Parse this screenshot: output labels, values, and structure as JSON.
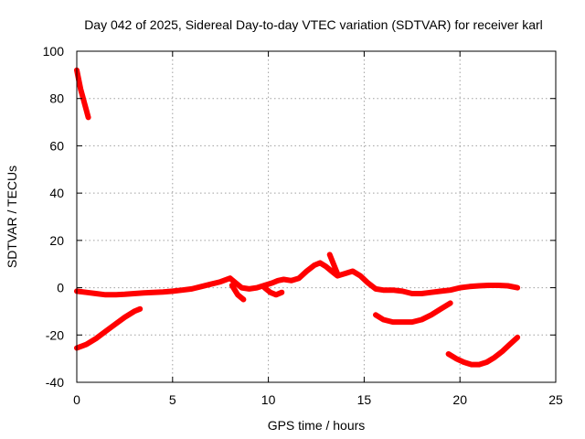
{
  "chart_data": {
    "type": "line",
    "title": "Day 042 of 2025, Sidereal Day-to-day VTEC variation (SDTVAR) for receiver karl",
    "xlabel": "GPS time / hours",
    "ylabel": "SDTVAR / TECUs",
    "xlim": [
      0,
      25
    ],
    "ylim": [
      -40,
      100
    ],
    "x_ticks": [
      0,
      5,
      10,
      15,
      20,
      25
    ],
    "y_ticks": [
      -40,
      -20,
      0,
      20,
      40,
      60,
      80,
      100
    ],
    "grid": true,
    "legend": "none",
    "series_color": "#ff0000",
    "series": [
      {
        "x": [
          0.0,
          0.1,
          0.2,
          0.3,
          0.4,
          0.5,
          0.6
        ],
        "y": [
          92,
          88,
          84,
          81,
          78,
          75,
          72
        ]
      },
      {
        "x": [
          0.0,
          0.5,
          1.0,
          1.5,
          2.0,
          2.5,
          3.0,
          3.5,
          4.0,
          4.5,
          5.0,
          5.5,
          6.0,
          6.5,
          7.0,
          7.5,
          8.0,
          8.3,
          8.6,
          9.0,
          9.4,
          9.8,
          10.2,
          10.5,
          10.8,
          11.2,
          11.6,
          12.0,
          12.4,
          12.7,
          13.0,
          13.3,
          13.6,
          14.0,
          14.4,
          14.8,
          15.2,
          15.6,
          16.0,
          16.5,
          17.0,
          17.5,
          18.0,
          18.5,
          19.0,
          19.5,
          20.0,
          20.5,
          21.0,
          21.5,
          22.0,
          22.5,
          23.0
        ],
        "y": [
          -1.5,
          -2,
          -2.5,
          -3,
          -3,
          -2.8,
          -2.5,
          -2.2,
          -2,
          -1.8,
          -1.5,
          -1,
          -0.5,
          0.5,
          1.5,
          2.5,
          4,
          2,
          0,
          -0.5,
          0,
          1,
          2,
          3,
          3.5,
          3,
          4,
          7,
          9.5,
          10.5,
          9,
          7,
          5,
          6,
          7,
          5,
          2,
          -0.5,
          -1,
          -1,
          -1.5,
          -2.5,
          -2.5,
          -2,
          -1.5,
          -1,
          0,
          0.5,
          0.8,
          1,
          1,
          0.8,
          0
        ]
      },
      {
        "x": [
          8.1,
          8.4,
          8.7
        ],
        "y": [
          1,
          -3,
          -5
        ]
      },
      {
        "x": [
          9.8,
          10.1,
          10.4,
          10.7
        ],
        "y": [
          0,
          -2,
          -3,
          -2
        ]
      },
      {
        "x": [
          13.2,
          13.4,
          13.6
        ],
        "y": [
          14,
          10,
          6
        ]
      },
      {
        "x": [
          0.0,
          0.5,
          1.0,
          1.5,
          2.0,
          2.5,
          3.0,
          3.3
        ],
        "y": [
          -25.5,
          -24,
          -21.5,
          -18.5,
          -15.5,
          -12.5,
          -10,
          -9
        ]
      },
      {
        "x": [
          15.6,
          16.0,
          16.5,
          17.0,
          17.5,
          18.0,
          18.5,
          19.0,
          19.5
        ],
        "y": [
          -11.5,
          -13.5,
          -14.5,
          -14.5,
          -14.5,
          -13.5,
          -11.5,
          -9,
          -6.5
        ]
      },
      {
        "x": [
          19.4,
          19.8,
          20.2,
          20.6,
          21.0,
          21.4,
          21.8,
          22.2,
          22.6,
          23.0
        ],
        "y": [
          -28,
          -30,
          -31.5,
          -32.5,
          -32.5,
          -31.5,
          -29.5,
          -27,
          -24,
          -21
        ]
      }
    ]
  }
}
